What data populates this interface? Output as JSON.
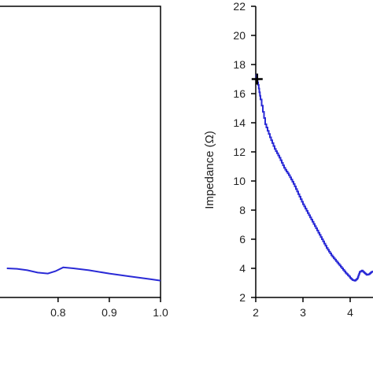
{
  "chart_data": [
    {
      "type": "line",
      "title": "",
      "xlabel": "",
      "ylabel": "",
      "xlim": [
        0.7,
        1.0
      ],
      "x_ticks": [
        "0.8",
        "0.9",
        "1.0"
      ],
      "x_tick_values": [
        0.8,
        0.9,
        1.0
      ],
      "grid": false,
      "series": [
        {
          "color": "#2a2ad6",
          "x": [
            0.7,
            0.72,
            0.74,
            0.76,
            0.78,
            0.795,
            0.81,
            0.83,
            0.86,
            0.9,
            0.94,
            0.98,
            1.0
          ],
          "y_rel": [
            0.0,
            0.002,
            0.008,
            0.018,
            0.022,
            0.012,
            -0.004,
            0.0,
            0.008,
            0.022,
            0.034,
            0.046,
            0.052
          ]
        }
      ]
    },
    {
      "type": "line",
      "title": "",
      "xlabel": "",
      "ylabel": "Impedance (Ω)",
      "xlim": [
        2,
        4.6
      ],
      "ylim": [
        2,
        22
      ],
      "x_ticks": [
        "2",
        "3",
        "4"
      ],
      "x_tick_values": [
        2,
        3,
        4
      ],
      "y_ticks": [
        "2",
        "4",
        "6",
        "8",
        "10",
        "12",
        "14",
        "16",
        "18",
        "20",
        "22"
      ],
      "y_tick_values": [
        2,
        4,
        6,
        8,
        10,
        12,
        14,
        16,
        18,
        20,
        22
      ],
      "grid": false,
      "marker": {
        "x": 2.03,
        "y": 17.0,
        "symbol": "+",
        "color": "#000000"
      },
      "series": [
        {
          "color": "#2a2ad6",
          "x": [
            2.0,
            2.05,
            2.1,
            2.2,
            2.3,
            2.4,
            2.5,
            2.6,
            2.7,
            2.8,
            2.9,
            3.0,
            3.1,
            3.2,
            3.3,
            3.4,
            3.5,
            3.6,
            3.7,
            3.8,
            3.9,
            4.0,
            4.05,
            4.1,
            4.15,
            4.2,
            4.25,
            4.3,
            4.35,
            4.4,
            4.45,
            4.5
          ],
          "y": [
            17.3,
            16.6,
            15.6,
            13.9,
            13.0,
            12.2,
            11.6,
            10.9,
            10.4,
            9.8,
            9.1,
            8.4,
            7.8,
            7.2,
            6.6,
            6.0,
            5.4,
            4.9,
            4.5,
            4.1,
            3.7,
            3.35,
            3.2,
            3.15,
            3.3,
            3.75,
            3.85,
            3.7,
            3.55,
            3.6,
            3.75,
            3.8
          ]
        }
      ]
    }
  ]
}
